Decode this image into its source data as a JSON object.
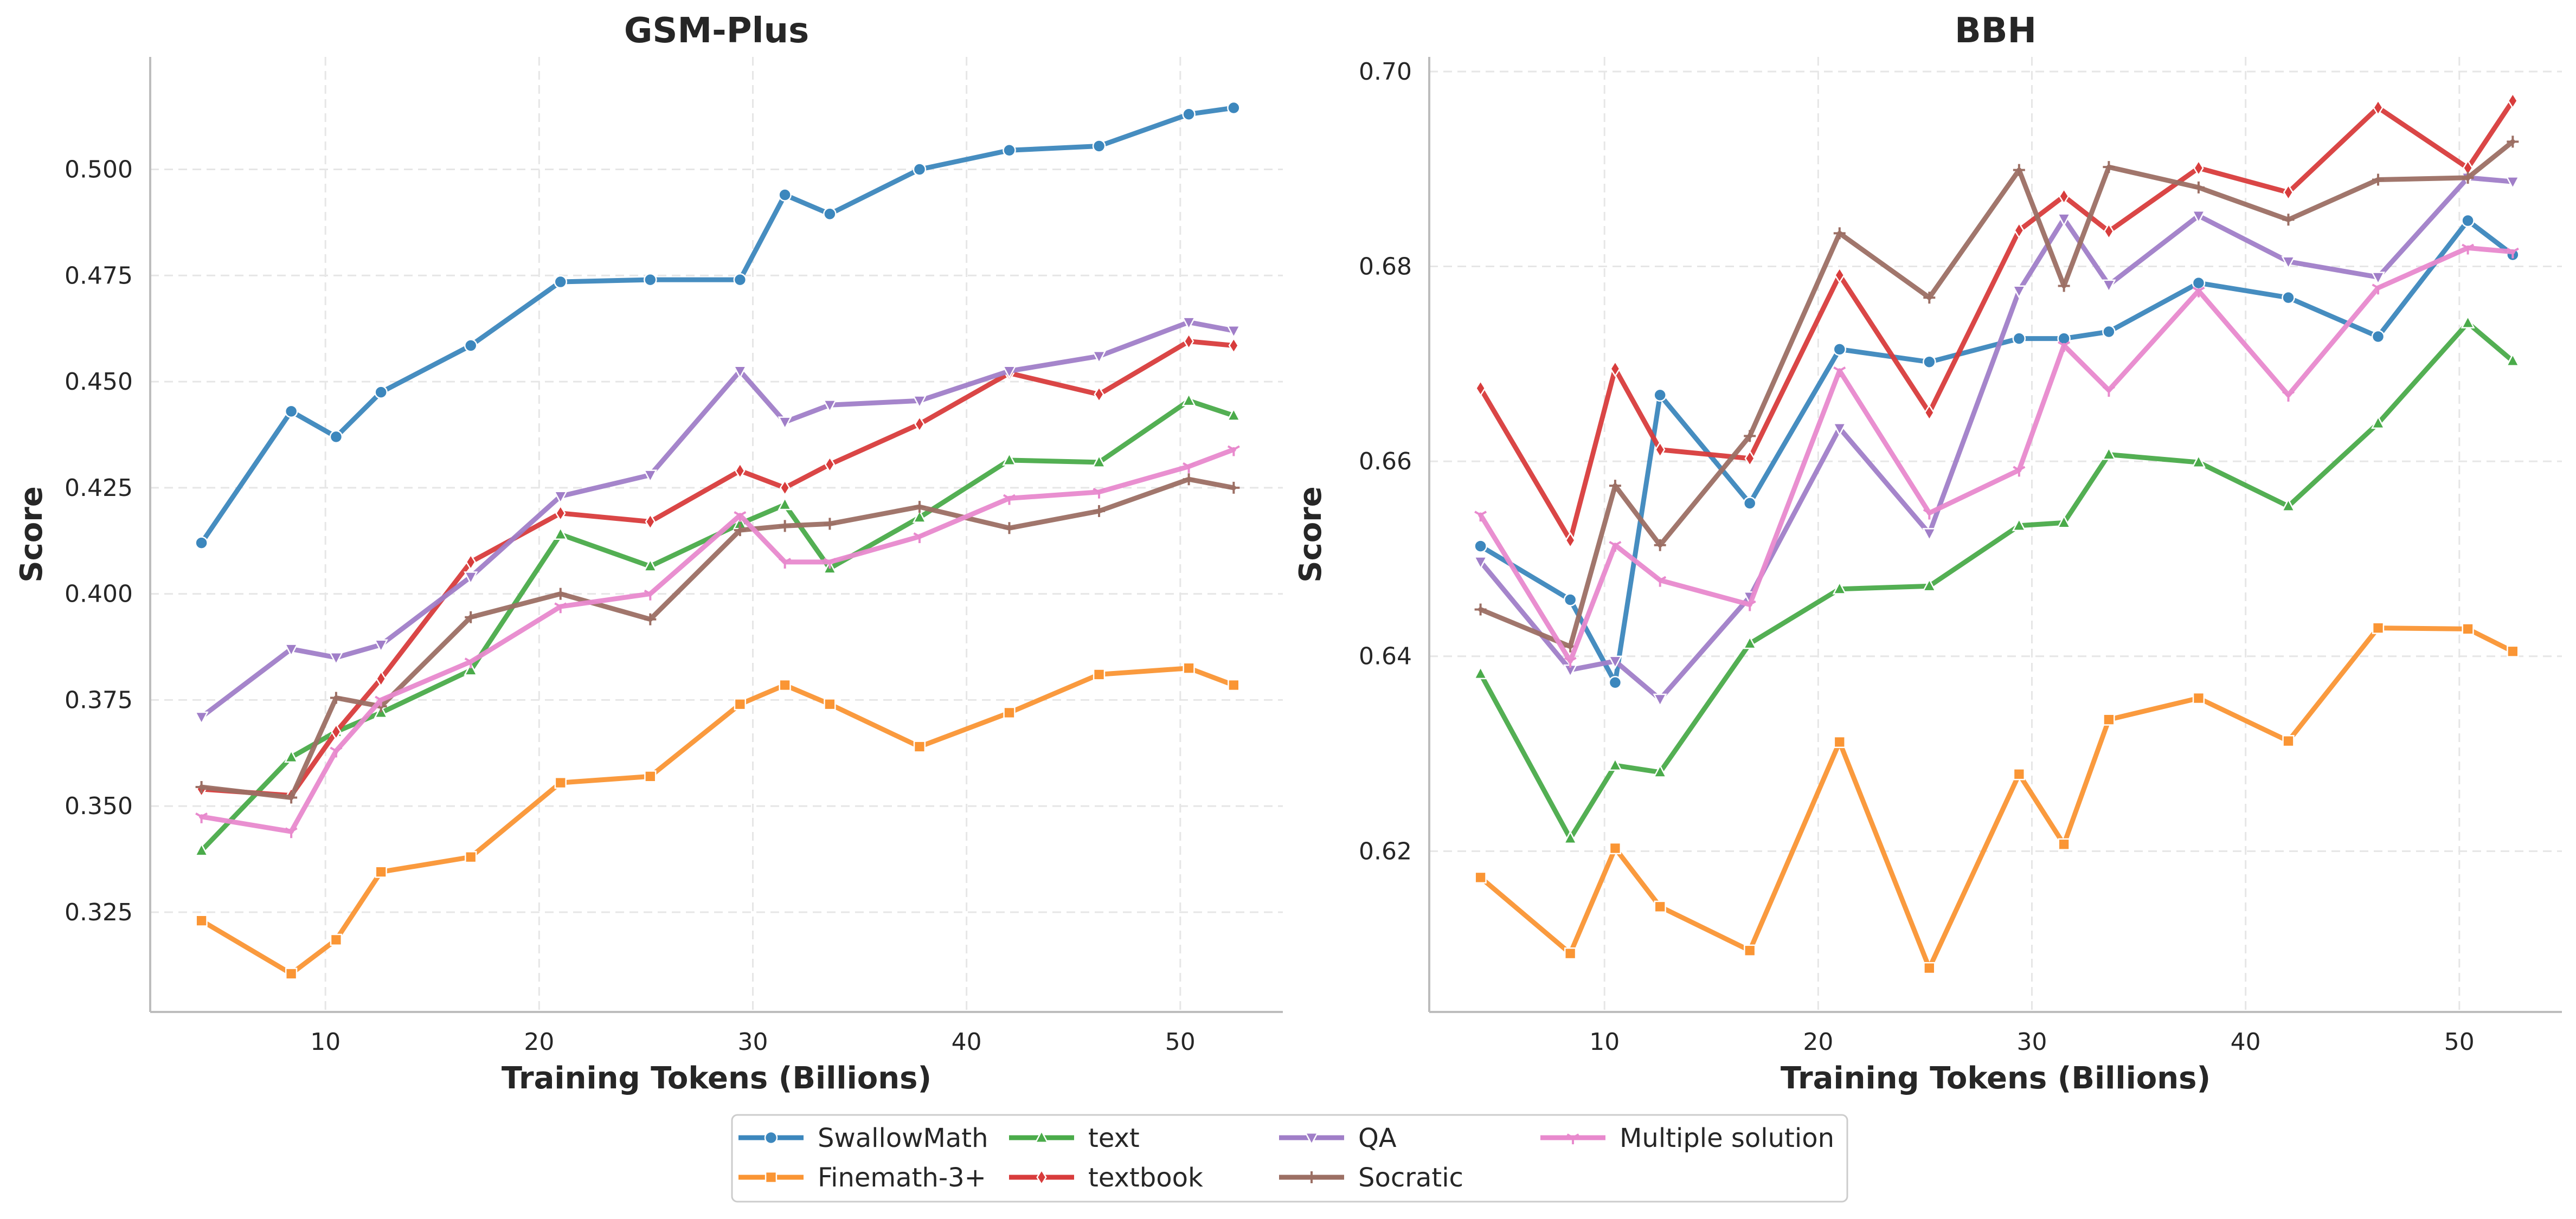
{
  "chart_data": [
    {
      "type": "line",
      "title": "GSM-Plus",
      "xlabel": "Training Tokens (Billions)",
      "ylabel": "Score",
      "xlim": [
        1.8,
        54.8
      ],
      "ylim": [
        0.3015,
        0.5265
      ],
      "xticks": [
        10,
        20,
        30,
        40,
        50
      ],
      "yticks": [
        0.325,
        0.35,
        0.375,
        0.4,
        0.425,
        0.45,
        0.475,
        0.5
      ],
      "ytick_labels": [
        "0.325",
        "0.350",
        "0.375",
        "0.400",
        "0.425",
        "0.450",
        "0.475",
        "0.500"
      ],
      "grid": true,
      "series": [
        {
          "name": "SwallowMath",
          "x": [
            4.2,
            8.4,
            10.5,
            12.6,
            16.8,
            21.0,
            25.2,
            29.4,
            31.5,
            33.6,
            37.8,
            42.0,
            46.2,
            50.4,
            52.5
          ],
          "y": [
            0.412,
            0.443,
            0.437,
            0.4475,
            0.4585,
            0.4735,
            0.474,
            0.474,
            0.494,
            0.4895,
            0.5,
            0.5045,
            0.5055,
            0.513,
            0.5145
          ]
        },
        {
          "name": "Finemath-3+",
          "x": [
            4.2,
            8.4,
            10.5,
            12.6,
            16.8,
            21.0,
            25.2,
            29.4,
            31.5,
            33.6,
            37.8,
            42.0,
            46.2,
            50.4,
            52.5
          ],
          "y": [
            0.323,
            0.3105,
            0.3185,
            0.3345,
            0.338,
            0.3555,
            0.357,
            0.374,
            0.3785,
            0.374,
            0.364,
            0.372,
            0.381,
            0.3825,
            0.3785
          ]
        },
        {
          "name": "text",
          "x": [
            4.2,
            8.4,
            10.5,
            12.6,
            16.8,
            21.0,
            25.2,
            29.4,
            31.5,
            33.6,
            37.8,
            42.0,
            46.2,
            50.4,
            52.5
          ],
          "y": [
            0.3395,
            0.3615,
            0.3675,
            0.372,
            0.382,
            0.414,
            0.4065,
            0.4165,
            0.421,
            0.406,
            0.418,
            0.4315,
            0.431,
            0.4455,
            0.442
          ]
        },
        {
          "name": "textbook",
          "x": [
            4.2,
            8.4,
            10.5,
            12.6,
            16.8,
            21.0,
            25.2,
            29.4,
            31.5,
            33.6,
            37.8,
            42.0,
            46.2,
            50.4,
            52.5
          ],
          "y": [
            0.354,
            0.3525,
            0.3675,
            0.38,
            0.4075,
            0.419,
            0.417,
            0.429,
            0.425,
            0.4305,
            0.44,
            0.452,
            0.447,
            0.4595,
            0.4585
          ]
        },
        {
          "name": "QA",
          "x": [
            4.2,
            8.4,
            10.5,
            12.6,
            16.8,
            21.0,
            25.2,
            29.4,
            31.5,
            33.6,
            37.8,
            42.0,
            46.2,
            50.4,
            52.5
          ],
          "y": [
            0.371,
            0.387,
            0.385,
            0.388,
            0.404,
            0.423,
            0.428,
            0.4525,
            0.4405,
            0.4445,
            0.4455,
            0.4525,
            0.456,
            0.464,
            0.462
          ]
        },
        {
          "name": "Socratic",
          "x": [
            4.2,
            8.4,
            10.5,
            12.6,
            16.8,
            21.0,
            25.2,
            29.4,
            31.5,
            33.6,
            37.8,
            42.0,
            46.2,
            50.4,
            52.5
          ],
          "y": [
            0.3545,
            0.352,
            0.3755,
            0.3735,
            0.3945,
            0.4,
            0.394,
            0.415,
            0.416,
            0.4165,
            0.4205,
            0.4155,
            0.4195,
            0.427,
            0.425
          ]
        },
        {
          "name": "Multiple solution",
          "x": [
            4.2,
            8.4,
            10.5,
            12.6,
            16.8,
            21.0,
            25.2,
            29.4,
            31.5,
            33.6,
            37.8,
            42.0,
            46.2,
            50.4,
            52.5
          ],
          "y": [
            0.3475,
            0.344,
            0.363,
            0.375,
            0.384,
            0.397,
            0.4,
            0.4185,
            0.4075,
            0.4075,
            0.4135,
            0.4225,
            0.424,
            0.43,
            0.434
          ]
        }
      ]
    },
    {
      "type": "line",
      "title": "BBH",
      "xlabel": "Training Tokens (Billions)",
      "ylabel": "Score",
      "xlim": [
        1.8,
        54.8
      ],
      "ylim": [
        0.6035,
        0.7015
      ],
      "xticks": [
        10,
        20,
        30,
        40,
        50
      ],
      "yticks": [
        0.62,
        0.64,
        0.66,
        0.68,
        0.7
      ],
      "ytick_labels": [
        "0.62",
        "0.64",
        "0.66",
        "0.68",
        "0.70"
      ],
      "grid": true,
      "series": [
        {
          "name": "SwallowMath",
          "x": [
            4.2,
            8.4,
            10.5,
            12.6,
            16.8,
            21.0,
            25.2,
            29.4,
            31.5,
            33.6,
            37.8,
            42.0,
            46.2,
            50.4,
            52.5
          ],
          "y": [
            0.6513,
            0.6458,
            0.6373,
            0.6668,
            0.6557,
            0.6715,
            0.6702,
            0.6726,
            0.6726,
            0.6733,
            0.6783,
            0.6768,
            0.6728,
            0.6847,
            0.6812
          ]
        },
        {
          "name": "Finemath-3+",
          "x": [
            4.2,
            8.4,
            10.5,
            12.6,
            16.8,
            21.0,
            25.2,
            29.4,
            31.5,
            33.6,
            37.8,
            42.0,
            46.2,
            50.4,
            52.5
          ],
          "y": [
            0.6173,
            0.6095,
            0.6203,
            0.6143,
            0.6098,
            0.6312,
            0.608,
            0.6279,
            0.6207,
            0.6335,
            0.6357,
            0.6313,
            0.6429,
            0.6428,
            0.6405
          ]
        },
        {
          "name": "text",
          "x": [
            4.2,
            8.4,
            10.5,
            12.6,
            16.8,
            21.0,
            25.2,
            29.4,
            31.5,
            33.6,
            37.8,
            42.0,
            46.2,
            50.4,
            52.5
          ],
          "y": [
            0.6382,
            0.6213,
            0.6288,
            0.6281,
            0.6413,
            0.6469,
            0.6472,
            0.6534,
            0.6537,
            0.6607,
            0.6599,
            0.6554,
            0.6639,
            0.6742,
            0.6703
          ]
        },
        {
          "name": "textbook",
          "x": [
            4.2,
            8.4,
            10.5,
            12.6,
            16.8,
            21.0,
            25.2,
            29.4,
            31.5,
            33.6,
            37.8,
            42.0,
            46.2,
            50.4,
            52.5
          ],
          "y": [
            0.6675,
            0.6519,
            0.6695,
            0.6612,
            0.6603,
            0.6791,
            0.665,
            0.6837,
            0.6872,
            0.6836,
            0.6901,
            0.6876,
            0.6963,
            0.6901,
            0.697
          ]
        },
        {
          "name": "QA",
          "x": [
            4.2,
            8.4,
            10.5,
            12.6,
            16.8,
            21.0,
            25.2,
            29.4,
            31.5,
            33.6,
            37.8,
            42.0,
            46.2,
            50.4,
            52.5
          ],
          "y": [
            0.6497,
            0.6386,
            0.6395,
            0.6356,
            0.6461,
            0.6634,
            0.6526,
            0.6775,
            0.6849,
            0.6781,
            0.6852,
            0.6805,
            0.6789,
            0.6891,
            0.6887
          ]
        },
        {
          "name": "Socratic",
          "x": [
            4.2,
            8.4,
            10.5,
            12.6,
            16.8,
            21.0,
            25.2,
            29.4,
            31.5,
            33.6,
            37.8,
            42.0,
            46.2,
            50.4,
            52.5
          ],
          "y": [
            0.6448,
            0.641,
            0.6575,
            0.6514,
            0.6626,
            0.6834,
            0.6768,
            0.6899,
            0.678,
            0.6902,
            0.6881,
            0.6848,
            0.6889,
            0.6891,
            0.6928
          ]
        },
        {
          "name": "Multiple solution",
          "x": [
            4.2,
            8.4,
            10.5,
            12.6,
            16.8,
            21.0,
            25.2,
            29.4,
            31.5,
            33.6,
            37.8,
            42.0,
            46.2,
            50.4,
            52.5
          ],
          "y": [
            0.6545,
            0.6395,
            0.6514,
            0.6478,
            0.6453,
            0.6693,
            0.6547,
            0.6591,
            0.6719,
            0.6673,
            0.6775,
            0.6668,
            0.6778,
            0.6819,
            0.6815
          ]
        }
      ]
    }
  ],
  "legend": {
    "placement": "bottom-center",
    "items": [
      {
        "name": "SwallowMath",
        "color": "#3c87bd",
        "marker": "circle"
      },
      {
        "name": "Finemath-3+",
        "color": "#fa9534",
        "marker": "square"
      },
      {
        "name": "text",
        "color": "#4aab4a",
        "marker": "triangle-up"
      },
      {
        "name": "textbook",
        "color": "#d83c3c",
        "marker": "diamond"
      },
      {
        "name": "QA",
        "color": "#a07ec8",
        "marker": "triangle-down"
      },
      {
        "name": "Socratic",
        "color": "#9c6f64",
        "marker": "plus"
      },
      {
        "name": "Multiple solution",
        "color": "#e889cd",
        "marker": "tri"
      }
    ]
  }
}
